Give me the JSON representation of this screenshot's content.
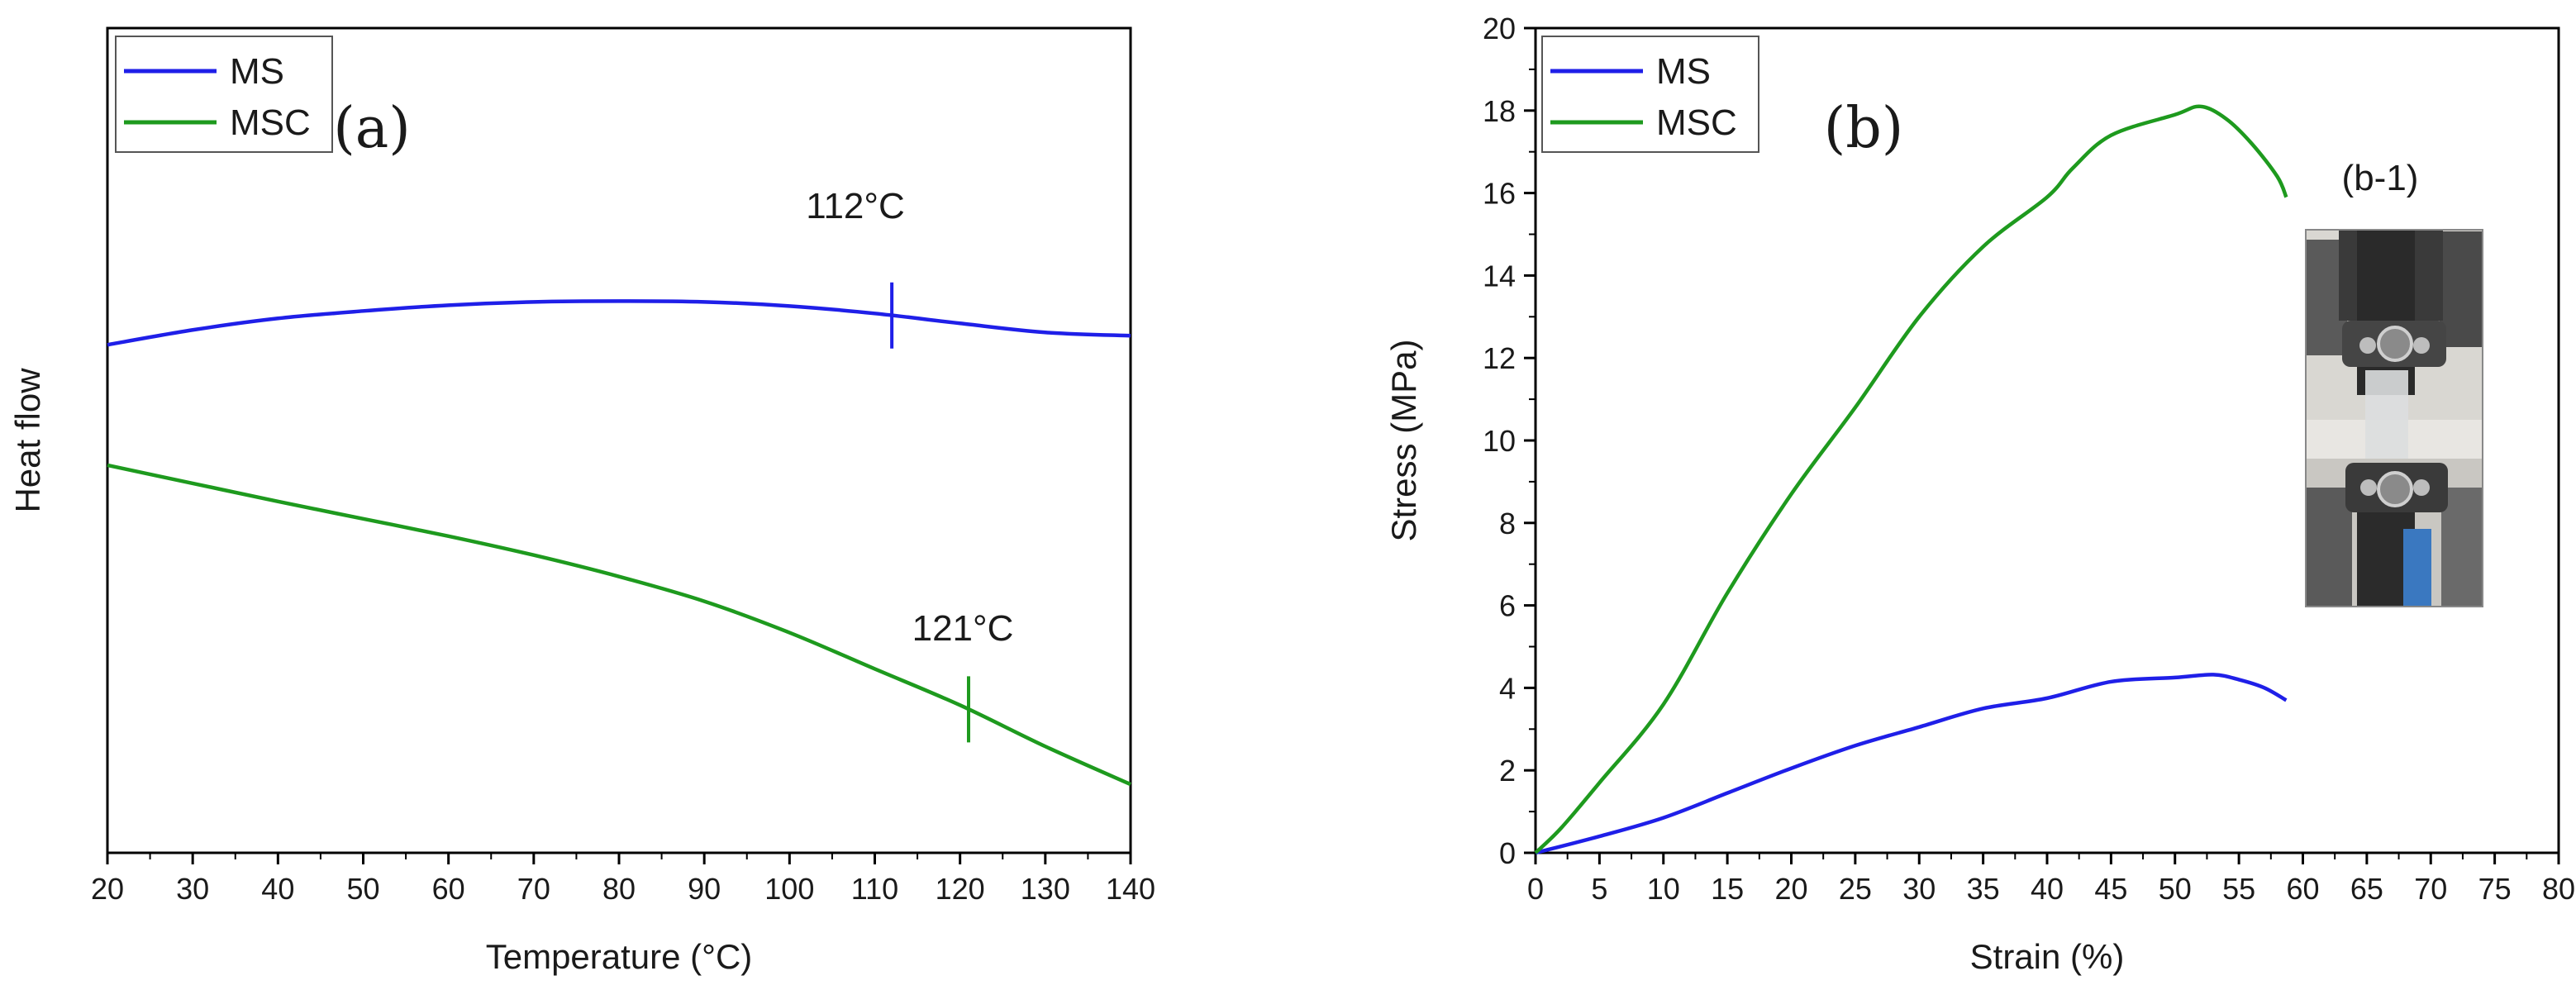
{
  "chart_data": [
    {
      "panel": "(a)",
      "type": "line",
      "title": "",
      "xlabel": "Temperature (°C)",
      "ylabel": "Heat flow",
      "xlim": [
        20,
        140
      ],
      "xticks": [
        20,
        30,
        40,
        50,
        60,
        70,
        80,
        90,
        100,
        110,
        120,
        130,
        140
      ],
      "yticks": [],
      "ylim": [
        0,
        100
      ],
      "legend": {
        "position": "top-left",
        "entries": [
          "MS",
          "MSC"
        ]
      },
      "series": [
        {
          "name": "MS",
          "color": "#1f1fe8",
          "x": [
            20,
            30,
            40,
            50,
            60,
            70,
            80,
            90,
            100,
            110,
            120,
            130,
            140
          ],
          "y": [
            61.6,
            63.4,
            64.8,
            65.7,
            66.4,
            66.8,
            66.9,
            66.8,
            66.3,
            65.4,
            64.2,
            63.1,
            62.7
          ]
        },
        {
          "name": "MSC",
          "color": "#1e9a1e",
          "x": [
            20,
            30,
            40,
            50,
            60,
            70,
            80,
            90,
            100,
            110,
            120,
            130,
            140
          ],
          "y": [
            47.0,
            44.8,
            42.6,
            40.5,
            38.4,
            36.1,
            33.5,
            30.5,
            26.7,
            22.3,
            17.9,
            12.9,
            8.3
          ]
        }
      ],
      "annotations": [
        {
          "text": "112°C",
          "series": "MS",
          "x": 112
        },
        {
          "text": "121°C",
          "series": "MSC",
          "x": 121
        }
      ]
    },
    {
      "panel": "(b)",
      "type": "line",
      "title": "",
      "xlabel": "Strain (%)",
      "ylabel": "Stress (MPa)",
      "xlim": [
        0,
        80
      ],
      "ylim": [
        0,
        20
      ],
      "xticks": [
        0,
        5,
        10,
        15,
        20,
        25,
        30,
        35,
        40,
        45,
        50,
        55,
        60,
        65,
        70,
        75,
        80
      ],
      "yticks": [
        0,
        2,
        4,
        6,
        8,
        10,
        12,
        14,
        16,
        18,
        20
      ],
      "legend": {
        "position": "top-left",
        "entries": [
          "MS",
          "MSC"
        ]
      },
      "series": [
        {
          "name": "MS",
          "color": "#1f1fe8",
          "x": [
            0,
            5,
            10,
            15,
            20,
            25,
            30,
            35,
            40,
            45,
            50,
            53,
            55,
            57,
            58.7
          ],
          "y": [
            0,
            0.4,
            0.85,
            1.45,
            2.05,
            2.6,
            3.05,
            3.5,
            3.75,
            4.15,
            4.25,
            4.32,
            4.2,
            4.0,
            3.7
          ]
        },
        {
          "name": "MSC",
          "color": "#1e9a1e",
          "x": [
            0,
            2,
            5,
            10,
            15,
            20,
            25,
            30,
            35,
            40,
            42,
            45,
            50,
            52,
            54,
            56,
            58,
            58.7
          ],
          "y": [
            0,
            0.6,
            1.7,
            3.6,
            6.3,
            8.7,
            10.8,
            13.0,
            14.7,
            15.9,
            16.6,
            17.4,
            17.9,
            18.1,
            17.8,
            17.2,
            16.4,
            15.9
          ]
        }
      ],
      "annotations": [
        {
          "text": "(b-1)"
        }
      ]
    }
  ]
}
